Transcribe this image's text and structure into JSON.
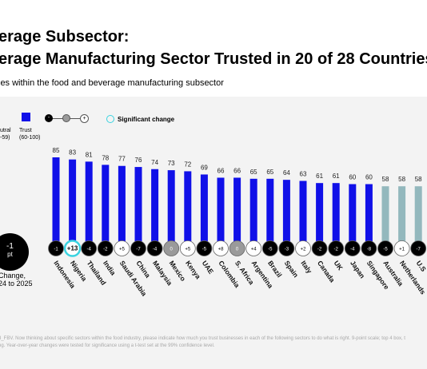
{
  "header": {
    "title_line1": "erage Subsector:",
    "title_line2": "erage Manufacturing Sector Trusted in 20 of 28 Countries",
    "subtitle": "ies within the food and beverage manufacturing subsector"
  },
  "legend": {
    "neutral_label": "utral",
    "neutral_range": "-59)",
    "trust_label": "Trust",
    "trust_range": "(60-100)",
    "minus_symbol": "-",
    "plus_symbol": "+",
    "significant_label": "Significant change",
    "change_value": "-1",
    "change_unit": "pt",
    "change_label_line1": "Change,",
    "change_label_line2": "24 to 2025"
  },
  "colors": {
    "trust": "#1010e8",
    "neutral": "#93b8bd",
    "significant_ring": "#3ad3e0",
    "change_negative": "#000000",
    "change_positive": "#ffffff",
    "change_none": "#9a9a9a"
  },
  "footnote": {
    "line1": "3_FBV. Now thinking about specific sectors within the food industry, please indicate how much you trust businesses in each of the following sectors to do what is right. 9-point scale; top 4 box, t",
    "line2": "ng. Year-over-year changes were tested for significance using a t-test set at the 99% confidence level."
  },
  "chart_data": {
    "type": "bar",
    "title": "",
    "xlabel": "",
    "ylabel": "",
    "ylim": [
      0,
      90
    ],
    "categories": [
      "Indonesia",
      "Nigeria",
      "Thailand",
      "India",
      "Saudi Arabia",
      "China",
      "Malaysia",
      "Mexico",
      "Kenya",
      "UAE",
      "Colombia",
      "S. Africa",
      "Argentina",
      "Brazil",
      "Spain",
      "Italy",
      "Canada",
      "UK",
      "Japan",
      "Singapore",
      "Australia",
      "Netherlands",
      "U.S."
    ],
    "values": [
      85,
      83,
      81,
      78,
      77,
      76,
      74,
      73,
      72,
      69,
      66,
      66,
      65,
      65,
      64,
      63,
      61,
      61,
      60,
      60,
      58,
      58,
      58
    ],
    "categories_display": [
      "Indonesia",
      "Nigeria",
      "Thailand",
      "India",
      "Saudi Arabia",
      "China",
      "Malaysia",
      "Mexico",
      "Kenya",
      "UAE",
      "Colombia",
      "S. Africa",
      "Argentina",
      "Brazil",
      "Spain",
      "Italy",
      "Canada",
      "UK",
      "Japan",
      "Singapore",
      "Australia",
      "Netherlands",
      "U.S"
    ],
    "value_labels": [
      "85",
      "83",
      "81",
      "78",
      "77",
      "76",
      "74",
      "73",
      "72",
      "69",
      "66",
      "66",
      "65",
      "65",
      "64",
      "63",
      "61",
      "61",
      "60",
      "60",
      "58",
      "58",
      "58"
    ],
    "trust_level": [
      "trust",
      "trust",
      "trust",
      "trust",
      "trust",
      "trust",
      "trust",
      "trust",
      "trust",
      "trust",
      "trust",
      "trust",
      "trust",
      "trust",
      "trust",
      "trust",
      "trust",
      "trust",
      "trust",
      "trust",
      "neutral",
      "neutral",
      "neutral"
    ],
    "changes": [
      "-1",
      "+13",
      "-4",
      "-2",
      "+5",
      "-7",
      "-4",
      "0",
      "+5",
      "-5",
      "+8",
      "0",
      "+4",
      "-5",
      "-3",
      "+2",
      "-2",
      "-2",
      "-4",
      "-8",
      "-5",
      "+1",
      "-7"
    ],
    "change_significant": [
      false,
      true,
      false,
      false,
      false,
      false,
      false,
      false,
      false,
      false,
      false,
      false,
      false,
      false,
      false,
      false,
      false,
      false,
      false,
      false,
      false,
      false,
      false
    ],
    "grid": false,
    "legend_position": "top-left"
  }
}
